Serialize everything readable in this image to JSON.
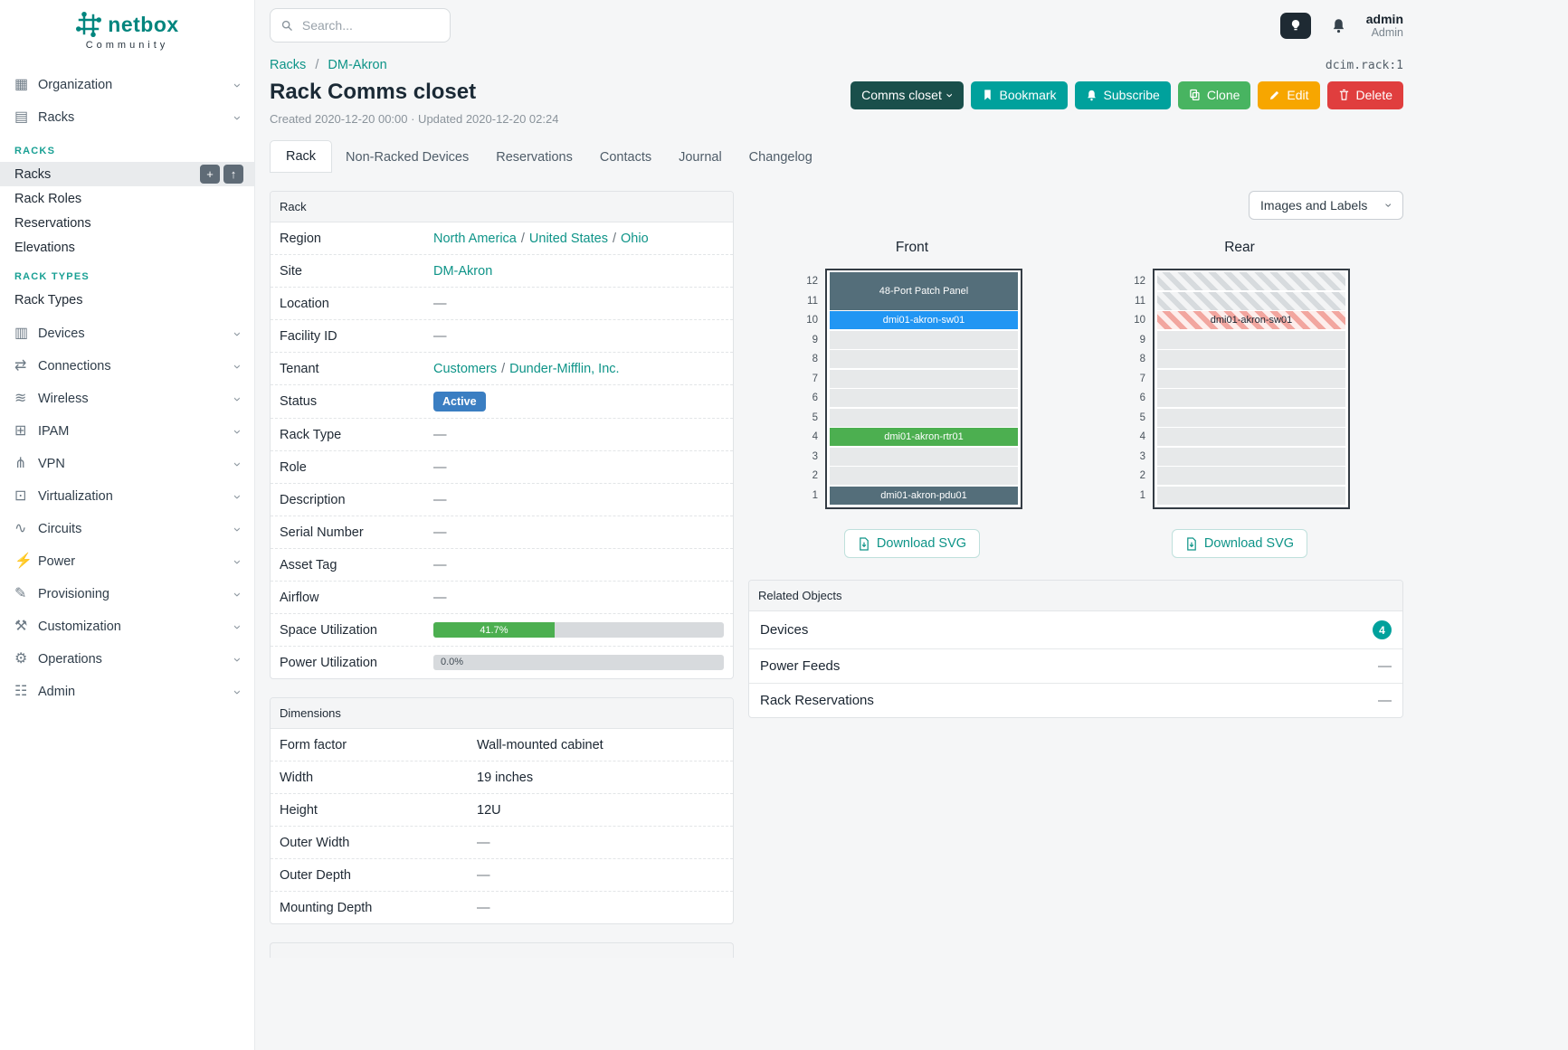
{
  "ui": {
    "chevron": "›",
    "link_sep": "/",
    "breadcrumb_sep": "/"
  },
  "brand": {
    "name": "netbox",
    "tagline": "Community"
  },
  "topbar": {
    "search_placeholder": "Search...",
    "user": {
      "name": "admin",
      "role": "Admin"
    }
  },
  "sidebar": {
    "items": [
      {
        "label": "Organization",
        "glyph": "▦"
      },
      {
        "label": "Racks",
        "glyph": "▤"
      },
      {
        "label": "Devices",
        "glyph": "▥"
      },
      {
        "label": "Connections",
        "glyph": "⇄"
      },
      {
        "label": "Wireless",
        "glyph": "≋"
      },
      {
        "label": "IPAM",
        "glyph": "⊞"
      },
      {
        "label": "VPN",
        "glyph": "⋔"
      },
      {
        "label": "Virtualization",
        "glyph": "⊡"
      },
      {
        "label": "Circuits",
        "glyph": "∿"
      },
      {
        "label": "Power",
        "glyph": "⚡"
      },
      {
        "label": "Provisioning",
        "glyph": "✎"
      },
      {
        "label": "Customization",
        "glyph": "⚒"
      },
      {
        "label": "Operations",
        "glyph": "⚙"
      },
      {
        "label": "Admin",
        "glyph": "☷"
      }
    ],
    "racks_submenu": {
      "groups": [
        {
          "header": "RACKS",
          "items": [
            "Racks",
            "Rack Roles",
            "Reservations",
            "Elevations"
          ]
        },
        {
          "header": "RACK TYPES",
          "items": [
            "Rack Types"
          ]
        }
      ],
      "active_item": "Racks",
      "add_glyph": "+",
      "import_glyph": "↑"
    }
  },
  "page": {
    "breadcrumb": {
      "parent": "Racks",
      "current": "DM-Akron"
    },
    "object_ref": "dcim.rack:1",
    "title": "Rack Comms closet",
    "meta": "Created 2020-12-20 00:00 · Updated 2020-12-20 02:24",
    "actions": {
      "context_label": "Comms closet",
      "bookmark": "Bookmark",
      "subscribe": "Subscribe",
      "clone": "Clone",
      "edit": "Edit",
      "delete": "Delete"
    },
    "tabs": [
      {
        "label": "Rack",
        "active": true
      },
      {
        "label": "Non-Racked Devices",
        "active": false
      },
      {
        "label": "Reservations",
        "active": false
      },
      {
        "label": "Contacts",
        "active": false
      },
      {
        "label": "Journal",
        "active": false
      },
      {
        "label": "Changelog",
        "active": false
      }
    ]
  },
  "rack_panel": {
    "title": "Rack",
    "rows": [
      {
        "label": "Region",
        "links": [
          "North America",
          "United States",
          "Ohio"
        ]
      },
      {
        "label": "Site",
        "links": [
          "DM-Akron"
        ]
      },
      {
        "label": "Location",
        "value": "—"
      },
      {
        "label": "Facility ID",
        "value": "—"
      },
      {
        "label": "Tenant",
        "links": [
          "Customers",
          "Dunder-Mifflin, Inc."
        ]
      },
      {
        "label": "Status",
        "badge": {
          "label": "Active",
          "color": "#3a7ec2"
        }
      },
      {
        "label": "Rack Type",
        "value": "—"
      },
      {
        "label": "Role",
        "value": "—"
      },
      {
        "label": "Description",
        "value": "—"
      },
      {
        "label": "Serial Number",
        "value": "—"
      },
      {
        "label": "Asset Tag",
        "value": "—"
      },
      {
        "label": "Airflow",
        "value": "—"
      },
      {
        "label": "Space Utilization",
        "progress": {
          "percent": 41.7,
          "label": "41.7%",
          "color": "#4caf50"
        }
      },
      {
        "label": "Power Utilization",
        "progress": {
          "percent": 0,
          "label": "0.0%"
        }
      }
    ]
  },
  "dimensions_panel": {
    "title": "Dimensions",
    "rows": [
      {
        "label": "Form factor",
        "value": "Wall-mounted cabinet"
      },
      {
        "label": "Width",
        "value": "19 inches"
      },
      {
        "label": "Height",
        "value": "12U"
      },
      {
        "label": "Outer Width",
        "value": "—"
      },
      {
        "label": "Outer Depth",
        "value": "—"
      },
      {
        "label": "Mounting Depth",
        "value": "—"
      }
    ]
  },
  "elevations": {
    "options_button": "Images and Labels",
    "front": {
      "title": "Front",
      "download": "Download SVG",
      "u_height": 12,
      "devices": [
        {
          "name": "48-Port Patch Panel",
          "top_u": 12,
          "height": 2,
          "color": "#546e7a",
          "text_color": "#ffffff"
        },
        {
          "name": "dmi01-akron-sw01",
          "top_u": 10,
          "height": 1,
          "color": "#2196f3",
          "text_color": "#ffffff"
        },
        {
          "name": "dmi01-akron-rtr01",
          "top_u": 4,
          "height": 1,
          "color": "#4caf50",
          "text_color": "#ffffff"
        },
        {
          "name": "dmi01-akron-pdu01",
          "top_u": 1,
          "height": 1,
          "color": "#546e7a",
          "text_color": "#ffffff"
        }
      ]
    },
    "rear": {
      "title": "Rear",
      "download": "Download SVG",
      "u_height": 12,
      "devices": [
        {
          "name": "",
          "top_u": 12,
          "height": 1,
          "style": "stripes-gray"
        },
        {
          "name": "",
          "top_u": 11,
          "height": 1,
          "style": "stripes-gray"
        },
        {
          "name": "dmi01-akron-sw01",
          "top_u": 10,
          "height": 1,
          "style": "stripes-red",
          "text_color": "#1a2531"
        }
      ]
    }
  },
  "related_objects": {
    "title": "Related Objects",
    "rows": [
      {
        "label": "Devices",
        "badge": "4"
      },
      {
        "label": "Power Feeds",
        "value": "—"
      },
      {
        "label": "Rack Reservations",
        "value": "—"
      }
    ]
  },
  "colors": {
    "brand_teal": "#00857e",
    "link_teal": "#0e9488",
    "button_teal": "#00a19c",
    "context_button_dark": "#1a4f4b",
    "clone_green": "#48b461",
    "edit_amber": "#f7a600",
    "delete_red": "#e03e3e",
    "status_active_blue": "#3a7ec2",
    "utilization_green": "#4caf50",
    "device_slate": "#546e7a",
    "device_blue": "#2196f3",
    "device_green": "#4caf50"
  }
}
